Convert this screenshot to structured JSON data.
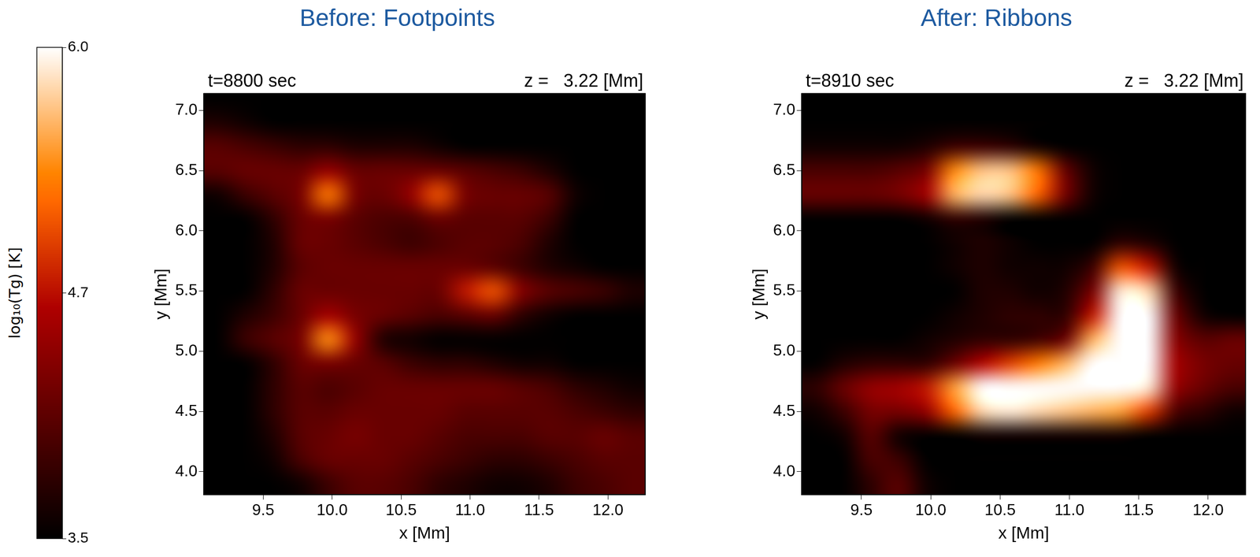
{
  "chart_data": [
    {
      "type": "heatmap",
      "title": "Before: Footpoints",
      "annotations": [
        "t=8800 sec",
        "z =   3.22 [Mm]"
      ],
      "x_label": "x [Mm]",
      "y_label": "y [Mm]",
      "xlim": [
        9.07,
        12.27
      ],
      "ylim": [
        3.81,
        7.14
      ],
      "xticks": [
        9.5,
        {
          "value": 10,
          "label": "10.0"
        },
        10.5,
        {
          "value": 11,
          "label": "11.0"
        },
        11.5,
        {
          "value": 12,
          "label": "12.0"
        }
      ],
      "yticks": [
        {
          "value": 4,
          "label": "4.0"
        },
        4.5,
        {
          "value": 5,
          "label": "5.0"
        },
        5.5,
        {
          "value": 6,
          "label": "6.0"
        },
        6.5,
        {
          "value": 7,
          "label": "7.0"
        }
      ],
      "grid": false,
      "x": [
        9.17,
        9.37,
        9.57,
        9.77,
        9.97,
        10.17,
        10.37,
        10.57,
        10.77,
        10.97,
        11.17,
        11.37,
        11.57,
        11.77,
        11.97,
        12.17
      ],
      "y": [
        3.9,
        4.1,
        4.3,
        4.5,
        4.7,
        4.9,
        5.1,
        5.3,
        5.5,
        5.7,
        5.9,
        6.1,
        6.3,
        6.5,
        6.7,
        6.9,
        7.1
      ],
      "values": [
        [
          3.5,
          3.5,
          3.5,
          3.6,
          3.9,
          4.1,
          4.1,
          4.0,
          3.8,
          3.7,
          3.6,
          3.6,
          3.7,
          3.9,
          4.0,
          4.1
        ],
        [
          3.5,
          3.5,
          3.6,
          4.0,
          4.2,
          4.2,
          4.2,
          4.1,
          4.0,
          3.9,
          3.8,
          3.8,
          3.9,
          4.0,
          4.1,
          4.1
        ],
        [
          3.5,
          3.5,
          3.7,
          4.1,
          4.2,
          4.3,
          4.2,
          4.2,
          4.1,
          4.0,
          4.0,
          4.0,
          4.1,
          4.1,
          4.2,
          4.1
        ],
        [
          3.5,
          3.5,
          3.8,
          4.1,
          4.1,
          4.2,
          4.2,
          4.2,
          4.2,
          4.1,
          4.1,
          4.1,
          4.1,
          4.0,
          3.9,
          3.8
        ],
        [
          3.5,
          3.5,
          3.8,
          4.1,
          4.0,
          4.1,
          4.2,
          4.2,
          4.2,
          4.2,
          4.2,
          4.1,
          4.0,
          3.8,
          3.7,
          3.6
        ],
        [
          3.5,
          3.5,
          3.8,
          4.2,
          4.3,
          4.2,
          4.1,
          3.9,
          3.8,
          3.8,
          3.7,
          3.6,
          3.6,
          3.5,
          3.5,
          3.5
        ],
        [
          3.5,
          3.9,
          4.1,
          4.3,
          5.4,
          4.5,
          3.7,
          3.6,
          3.5,
          3.5,
          3.5,
          3.5,
          3.5,
          3.5,
          3.5,
          3.5
        ],
        [
          3.5,
          3.7,
          3.9,
          4.2,
          4.6,
          4.3,
          4.2,
          4.1,
          4.0,
          4.1,
          4.2,
          3.8,
          3.6,
          3.5,
          3.5,
          3.5
        ],
        [
          3.5,
          3.5,
          3.8,
          4.2,
          4.2,
          4.2,
          4.2,
          4.2,
          4.2,
          4.8,
          5.1,
          4.4,
          4.1,
          4.0,
          3.9,
          3.7
        ],
        [
          3.5,
          3.5,
          3.7,
          4.1,
          4.2,
          4.2,
          4.2,
          4.2,
          4.2,
          4.2,
          4.1,
          3.9,
          3.7,
          3.6,
          3.5,
          3.5
        ],
        [
          3.5,
          3.5,
          3.7,
          4.2,
          4.2,
          4.1,
          4.0,
          3.9,
          4.0,
          4.1,
          4.1,
          4.0,
          3.7,
          3.5,
          3.5,
          3.5
        ],
        [
          3.5,
          3.5,
          3.8,
          4.2,
          4.3,
          4.1,
          4.0,
          4.0,
          4.2,
          4.1,
          4.1,
          4.1,
          3.9,
          3.5,
          3.5,
          3.5
        ],
        [
          3.6,
          3.9,
          4.1,
          4.3,
          5.3,
          4.3,
          4.2,
          4.5,
          5.1,
          4.3,
          4.2,
          4.2,
          4.1,
          3.6,
          3.5,
          3.5
        ],
        [
          4.1,
          4.2,
          4.2,
          4.2,
          4.5,
          4.2,
          4.2,
          4.2,
          4.2,
          4.1,
          4.0,
          3.9,
          3.7,
          3.5,
          3.5,
          3.5
        ],
        [
          4.1,
          4.0,
          3.9,
          3.8,
          3.8,
          3.7,
          3.7,
          3.7,
          3.6,
          3.5,
          3.5,
          3.5,
          3.5,
          3.5,
          3.5,
          3.5
        ],
        [
          3.7,
          3.6,
          3.5,
          3.5,
          3.5,
          3.5,
          3.5,
          3.5,
          3.5,
          3.5,
          3.5,
          3.5,
          3.5,
          3.5,
          3.5,
          3.5
        ],
        [
          3.5,
          3.5,
          3.5,
          3.5,
          3.5,
          3.5,
          3.5,
          3.5,
          3.5,
          3.5,
          3.5,
          3.5,
          3.5,
          3.5,
          3.5,
          3.5
        ]
      ]
    },
    {
      "type": "heatmap",
      "title": "After: Ribbons",
      "annotations": [
        "t=8910 sec",
        "z =   3.22 [Mm]"
      ],
      "x_label": "x [Mm]",
      "y_label": "y [Mm]",
      "xlim": [
        9.07,
        12.27
      ],
      "ylim": [
        3.81,
        7.14
      ],
      "xticks": [
        9.5,
        {
          "value": 10,
          "label": "10.0"
        },
        10.5,
        {
          "value": 11,
          "label": "11.0"
        },
        11.5,
        {
          "value": 12,
          "label": "12.0"
        }
      ],
      "yticks": [
        {
          "value": 4,
          "label": "4.0"
        },
        4.5,
        {
          "value": 5,
          "label": "5.0"
        },
        5.5,
        {
          "value": 6,
          "label": "6.0"
        },
        6.5,
        {
          "value": 7,
          "label": "7.0"
        }
      ],
      "grid": false,
      "x": [
        9.17,
        9.37,
        9.57,
        9.77,
        9.97,
        10.17,
        10.37,
        10.57,
        10.77,
        10.97,
        11.17,
        11.37,
        11.57,
        11.77,
        11.97,
        12.17
      ],
      "y": [
        3.9,
        4.1,
        4.3,
        4.5,
        4.7,
        4.9,
        5.1,
        5.3,
        5.5,
        5.7,
        5.9,
        6.1,
        6.3,
        6.5,
        6.7,
        6.9,
        7.1
      ],
      "values": [
        [
          3.5,
          3.5,
          3.8,
          4.1,
          3.6,
          3.5,
          3.5,
          3.5,
          3.5,
          3.5,
          3.5,
          3.5,
          3.5,
          3.5,
          3.5,
          3.5
        ],
        [
          3.5,
          3.5,
          4.0,
          3.9,
          3.5,
          3.5,
          3.5,
          3.5,
          3.5,
          3.5,
          3.5,
          3.5,
          3.5,
          3.5,
          3.5,
          3.5
        ],
        [
          3.5,
          3.6,
          4.1,
          3.6,
          3.5,
          3.5,
          3.6,
          3.6,
          3.6,
          3.6,
          3.6,
          3.6,
          3.5,
          3.5,
          3.5,
          3.5
        ],
        [
          3.6,
          3.9,
          4.3,
          4.3,
          4.5,
          5.2,
          5.8,
          5.9,
          5.8,
          5.7,
          5.6,
          5.5,
          5.0,
          4.0,
          3.8,
          3.6
        ],
        [
          3.8,
          4.2,
          4.5,
          4.6,
          4.8,
          5.5,
          6.0,
          6.0,
          6.0,
          6.0,
          6.0,
          6.0,
          5.9,
          4.5,
          4.2,
          4.0
        ],
        [
          3.5,
          3.7,
          3.8,
          3.8,
          3.8,
          4.2,
          4.7,
          5.0,
          5.3,
          5.6,
          6.0,
          6.0,
          6.0,
          4.6,
          4.3,
          4.2
        ],
        [
          3.5,
          3.5,
          3.5,
          3.5,
          3.6,
          3.7,
          3.8,
          3.8,
          3.9,
          4.2,
          5.6,
          6.0,
          6.0,
          4.4,
          4.1,
          4.2
        ],
        [
          3.5,
          3.5,
          3.5,
          3.5,
          3.5,
          3.6,
          3.7,
          3.8,
          3.8,
          3.8,
          4.8,
          6.0,
          6.0,
          4.2,
          3.6,
          3.5
        ],
        [
          3.5,
          3.5,
          3.5,
          3.5,
          3.5,
          3.5,
          3.7,
          3.7,
          3.6,
          3.7,
          4.3,
          5.9,
          5.8,
          3.9,
          3.5,
          3.5
        ],
        [
          3.5,
          3.5,
          3.5,
          3.5,
          3.5,
          3.6,
          3.7,
          3.6,
          3.6,
          3.6,
          3.9,
          5.1,
          4.8,
          3.6,
          3.5,
          3.5
        ],
        [
          3.5,
          3.5,
          3.5,
          3.5,
          3.5,
          3.6,
          3.7,
          3.6,
          3.5,
          3.5,
          3.5,
          3.8,
          3.7,
          3.5,
          3.5,
          3.5
        ],
        [
          3.5,
          3.5,
          3.5,
          3.5,
          3.6,
          3.8,
          3.7,
          3.5,
          3.5,
          3.5,
          3.5,
          3.5,
          3.5,
          3.5,
          3.5,
          3.5
        ],
        [
          4.2,
          4.2,
          4.2,
          4.3,
          4.6,
          5.6,
          5.8,
          5.7,
          5.2,
          4.3,
          3.6,
          3.5,
          3.5,
          3.5,
          3.5,
          3.5
        ],
        [
          4.0,
          4.0,
          4.0,
          4.1,
          4.3,
          5.4,
          5.7,
          5.7,
          5.3,
          4.2,
          3.6,
          3.5,
          3.5,
          3.5,
          3.5,
          3.5
        ],
        [
          3.6,
          3.6,
          3.6,
          3.6,
          3.7,
          3.9,
          3.9,
          3.8,
          3.6,
          3.5,
          3.5,
          3.5,
          3.5,
          3.5,
          3.5,
          3.5
        ],
        [
          3.5,
          3.5,
          3.5,
          3.5,
          3.5,
          3.5,
          3.5,
          3.5,
          3.5,
          3.5,
          3.5,
          3.5,
          3.5,
          3.5,
          3.5,
          3.5
        ],
        [
          3.5,
          3.5,
          3.5,
          3.5,
          3.5,
          3.5,
          3.5,
          3.5,
          3.5,
          3.5,
          3.5,
          3.5,
          3.5,
          3.5,
          3.5,
          3.5
        ]
      ]
    }
  ],
  "colorbar": {
    "title": "log₁₀(Tg) [K]",
    "range": [
      3.5,
      6.0
    ],
    "ticks": [
      {
        "value": 3.5,
        "label": "3.50"
      },
      4.75,
      {
        "value": 6,
        "label": "6.00"
      }
    ]
  }
}
